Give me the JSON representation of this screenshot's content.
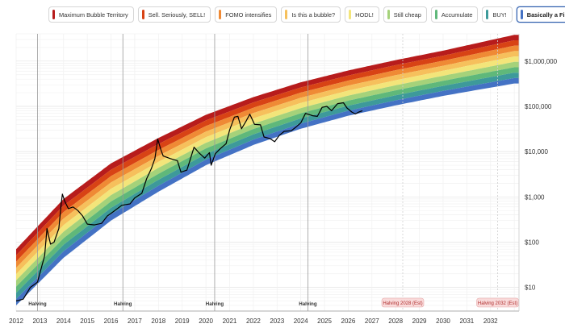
{
  "chart_data": {
    "type": "area",
    "title": "",
    "xlabel": "",
    "ylabel": "",
    "y_scale": "log",
    "xlim": [
      2012,
      2033.2
    ],
    "ylim": [
      3,
      4000000
    ],
    "x_ticks": [
      "2012",
      "2013",
      "2014",
      "2015",
      "2016",
      "2017",
      "2018",
      "2019",
      "2020",
      "2021",
      "2022",
      "2023",
      "2024",
      "2025",
      "2026",
      "2027",
      "2028",
      "2029",
      "2030",
      "2031",
      "2032"
    ],
    "y_ticks": [
      {
        "value": 10,
        "label": "$10"
      },
      {
        "value": 100,
        "label": "$100"
      },
      {
        "value": 1000,
        "label": "$1,000"
      },
      {
        "value": 10000,
        "label": "$10,000"
      },
      {
        "value": 100000,
        "label": "$100,000"
      },
      {
        "value": 1000000,
        "label": "$1,000,000"
      }
    ],
    "bands": [
      {
        "name": "Maximum Bubble Territory",
        "color": "#b71c1c"
      },
      {
        "name": "Sell. Seriously, SELL!",
        "color": "#d84315"
      },
      {
        "name": "FOMO intensifies",
        "color": "#ef8a35"
      },
      {
        "name": "Is this a bubble?",
        "color": "#f6c05c"
      },
      {
        "name": "HODL!",
        "color": "#f3e57a"
      },
      {
        "name": "Still cheap",
        "color": "#a5d27a"
      },
      {
        "name": "Accumulate",
        "color": "#5fb87a"
      },
      {
        "name": "BUY!",
        "color": "#3d9a9a"
      },
      {
        "name": "Basically a Fire Sale",
        "color": "#4472c4"
      }
    ],
    "band_lower_edge": [
      {
        "x": 2012.0,
        "y": 4
      },
      {
        "x": 2014.0,
        "y": 45
      },
      {
        "x": 2016.0,
        "y": 300
      },
      {
        "x": 2018.0,
        "y": 1300
      },
      {
        "x": 2020.0,
        "y": 5000
      },
      {
        "x": 2022.0,
        "y": 14000
      },
      {
        "x": 2024.0,
        "y": 32000
      },
      {
        "x": 2026.0,
        "y": 62000
      },
      {
        "x": 2028.0,
        "y": 105000
      },
      {
        "x": 2030.0,
        "y": 170000
      },
      {
        "x": 2033.0,
        "y": 320000
      }
    ],
    "band_upper_edge": [
      {
        "x": 2012.0,
        "y": 70
      },
      {
        "x": 2014.0,
        "y": 900
      },
      {
        "x": 2016.0,
        "y": 5500
      },
      {
        "x": 2018.0,
        "y": 20000
      },
      {
        "x": 2020.0,
        "y": 65000
      },
      {
        "x": 2022.0,
        "y": 160000
      },
      {
        "x": 2024.0,
        "y": 340000
      },
      {
        "x": 2026.0,
        "y": 620000
      },
      {
        "x": 2028.0,
        "y": 1050000
      },
      {
        "x": 2030.0,
        "y": 1700000
      },
      {
        "x": 2033.0,
        "y": 3800000
      }
    ],
    "series": [
      {
        "color": "#000000",
        "points": [
          {
            "x": 2012.0,
            "y": 5
          },
          {
            "x": 2012.3,
            "y": 5.5
          },
          {
            "x": 2012.6,
            "y": 10
          },
          {
            "x": 2012.9,
            "y": 13
          },
          {
            "x": 2013.2,
            "y": 50
          },
          {
            "x": 2013.3,
            "y": 200
          },
          {
            "x": 2013.45,
            "y": 90
          },
          {
            "x": 2013.6,
            "y": 100
          },
          {
            "x": 2013.8,
            "y": 200
          },
          {
            "x": 2013.9,
            "y": 700
          },
          {
            "x": 2013.95,
            "y": 1150
          },
          {
            "x": 2014.05,
            "y": 800
          },
          {
            "x": 2014.2,
            "y": 550
          },
          {
            "x": 2014.4,
            "y": 600
          },
          {
            "x": 2014.6,
            "y": 500
          },
          {
            "x": 2014.8,
            "y": 380
          },
          {
            "x": 2015.0,
            "y": 250
          },
          {
            "x": 2015.3,
            "y": 240
          },
          {
            "x": 2015.6,
            "y": 260
          },
          {
            "x": 2015.85,
            "y": 380
          },
          {
            "x": 2016.0,
            "y": 430
          },
          {
            "x": 2016.45,
            "y": 650
          },
          {
            "x": 2016.8,
            "y": 700
          },
          {
            "x": 2017.0,
            "y": 950
          },
          {
            "x": 2017.3,
            "y": 1200
          },
          {
            "x": 2017.5,
            "y": 2500
          },
          {
            "x": 2017.7,
            "y": 4200
          },
          {
            "x": 2017.85,
            "y": 7000
          },
          {
            "x": 2017.97,
            "y": 19000
          },
          {
            "x": 2018.1,
            "y": 11000
          },
          {
            "x": 2018.2,
            "y": 8000
          },
          {
            "x": 2018.5,
            "y": 7000
          },
          {
            "x": 2018.8,
            "y": 6300
          },
          {
            "x": 2018.95,
            "y": 3500
          },
          {
            "x": 2019.2,
            "y": 3900
          },
          {
            "x": 2019.5,
            "y": 12500
          },
          {
            "x": 2019.7,
            "y": 9500
          },
          {
            "x": 2019.95,
            "y": 7200
          },
          {
            "x": 2020.15,
            "y": 9500
          },
          {
            "x": 2020.22,
            "y": 5000
          },
          {
            "x": 2020.4,
            "y": 9000
          },
          {
            "x": 2020.6,
            "y": 11500
          },
          {
            "x": 2020.85,
            "y": 15000
          },
          {
            "x": 2021.0,
            "y": 30000
          },
          {
            "x": 2021.2,
            "y": 58000
          },
          {
            "x": 2021.35,
            "y": 60000
          },
          {
            "x": 2021.5,
            "y": 32000
          },
          {
            "x": 2021.7,
            "y": 48000
          },
          {
            "x": 2021.85,
            "y": 67000
          },
          {
            "x": 2022.05,
            "y": 40000
          },
          {
            "x": 2022.3,
            "y": 39000
          },
          {
            "x": 2022.45,
            "y": 21000
          },
          {
            "x": 2022.7,
            "y": 19500
          },
          {
            "x": 2022.9,
            "y": 16500
          },
          {
            "x": 2023.1,
            "y": 23000
          },
          {
            "x": 2023.3,
            "y": 28000
          },
          {
            "x": 2023.6,
            "y": 29000
          },
          {
            "x": 2023.8,
            "y": 35000
          },
          {
            "x": 2024.0,
            "y": 43000
          },
          {
            "x": 2024.2,
            "y": 70000
          },
          {
            "x": 2024.5,
            "y": 62000
          },
          {
            "x": 2024.7,
            "y": 60000
          },
          {
            "x": 2024.9,
            "y": 95000
          },
          {
            "x": 2025.1,
            "y": 100000
          },
          {
            "x": 2025.3,
            "y": 80000
          },
          {
            "x": 2025.55,
            "y": 115000
          },
          {
            "x": 2025.8,
            "y": 120000
          },
          {
            "x": 2025.95,
            "y": 92000
          },
          {
            "x": 2026.15,
            "y": 75000
          },
          {
            "x": 2026.3,
            "y": 68000
          },
          {
            "x": 2026.45,
            "y": 75000
          },
          {
            "x": 2026.6,
            "y": 80000
          }
        ]
      }
    ],
    "halvings": [
      {
        "x": 2012.9,
        "label": "Halving",
        "estimated": false
      },
      {
        "x": 2016.5,
        "label": "Halving",
        "estimated": false
      },
      {
        "x": 2020.37,
        "label": "Halving",
        "estimated": false
      },
      {
        "x": 2024.3,
        "label": "Halving",
        "estimated": false
      },
      {
        "x": 2028.3,
        "label": "Halving 2028 (Est)",
        "estimated": true
      },
      {
        "x": 2032.3,
        "label": "Halving 2032 (Est)",
        "estimated": true
      }
    ],
    "legend_active": "Basically a Fire Sale",
    "legend_position": "top",
    "grid": true
  }
}
